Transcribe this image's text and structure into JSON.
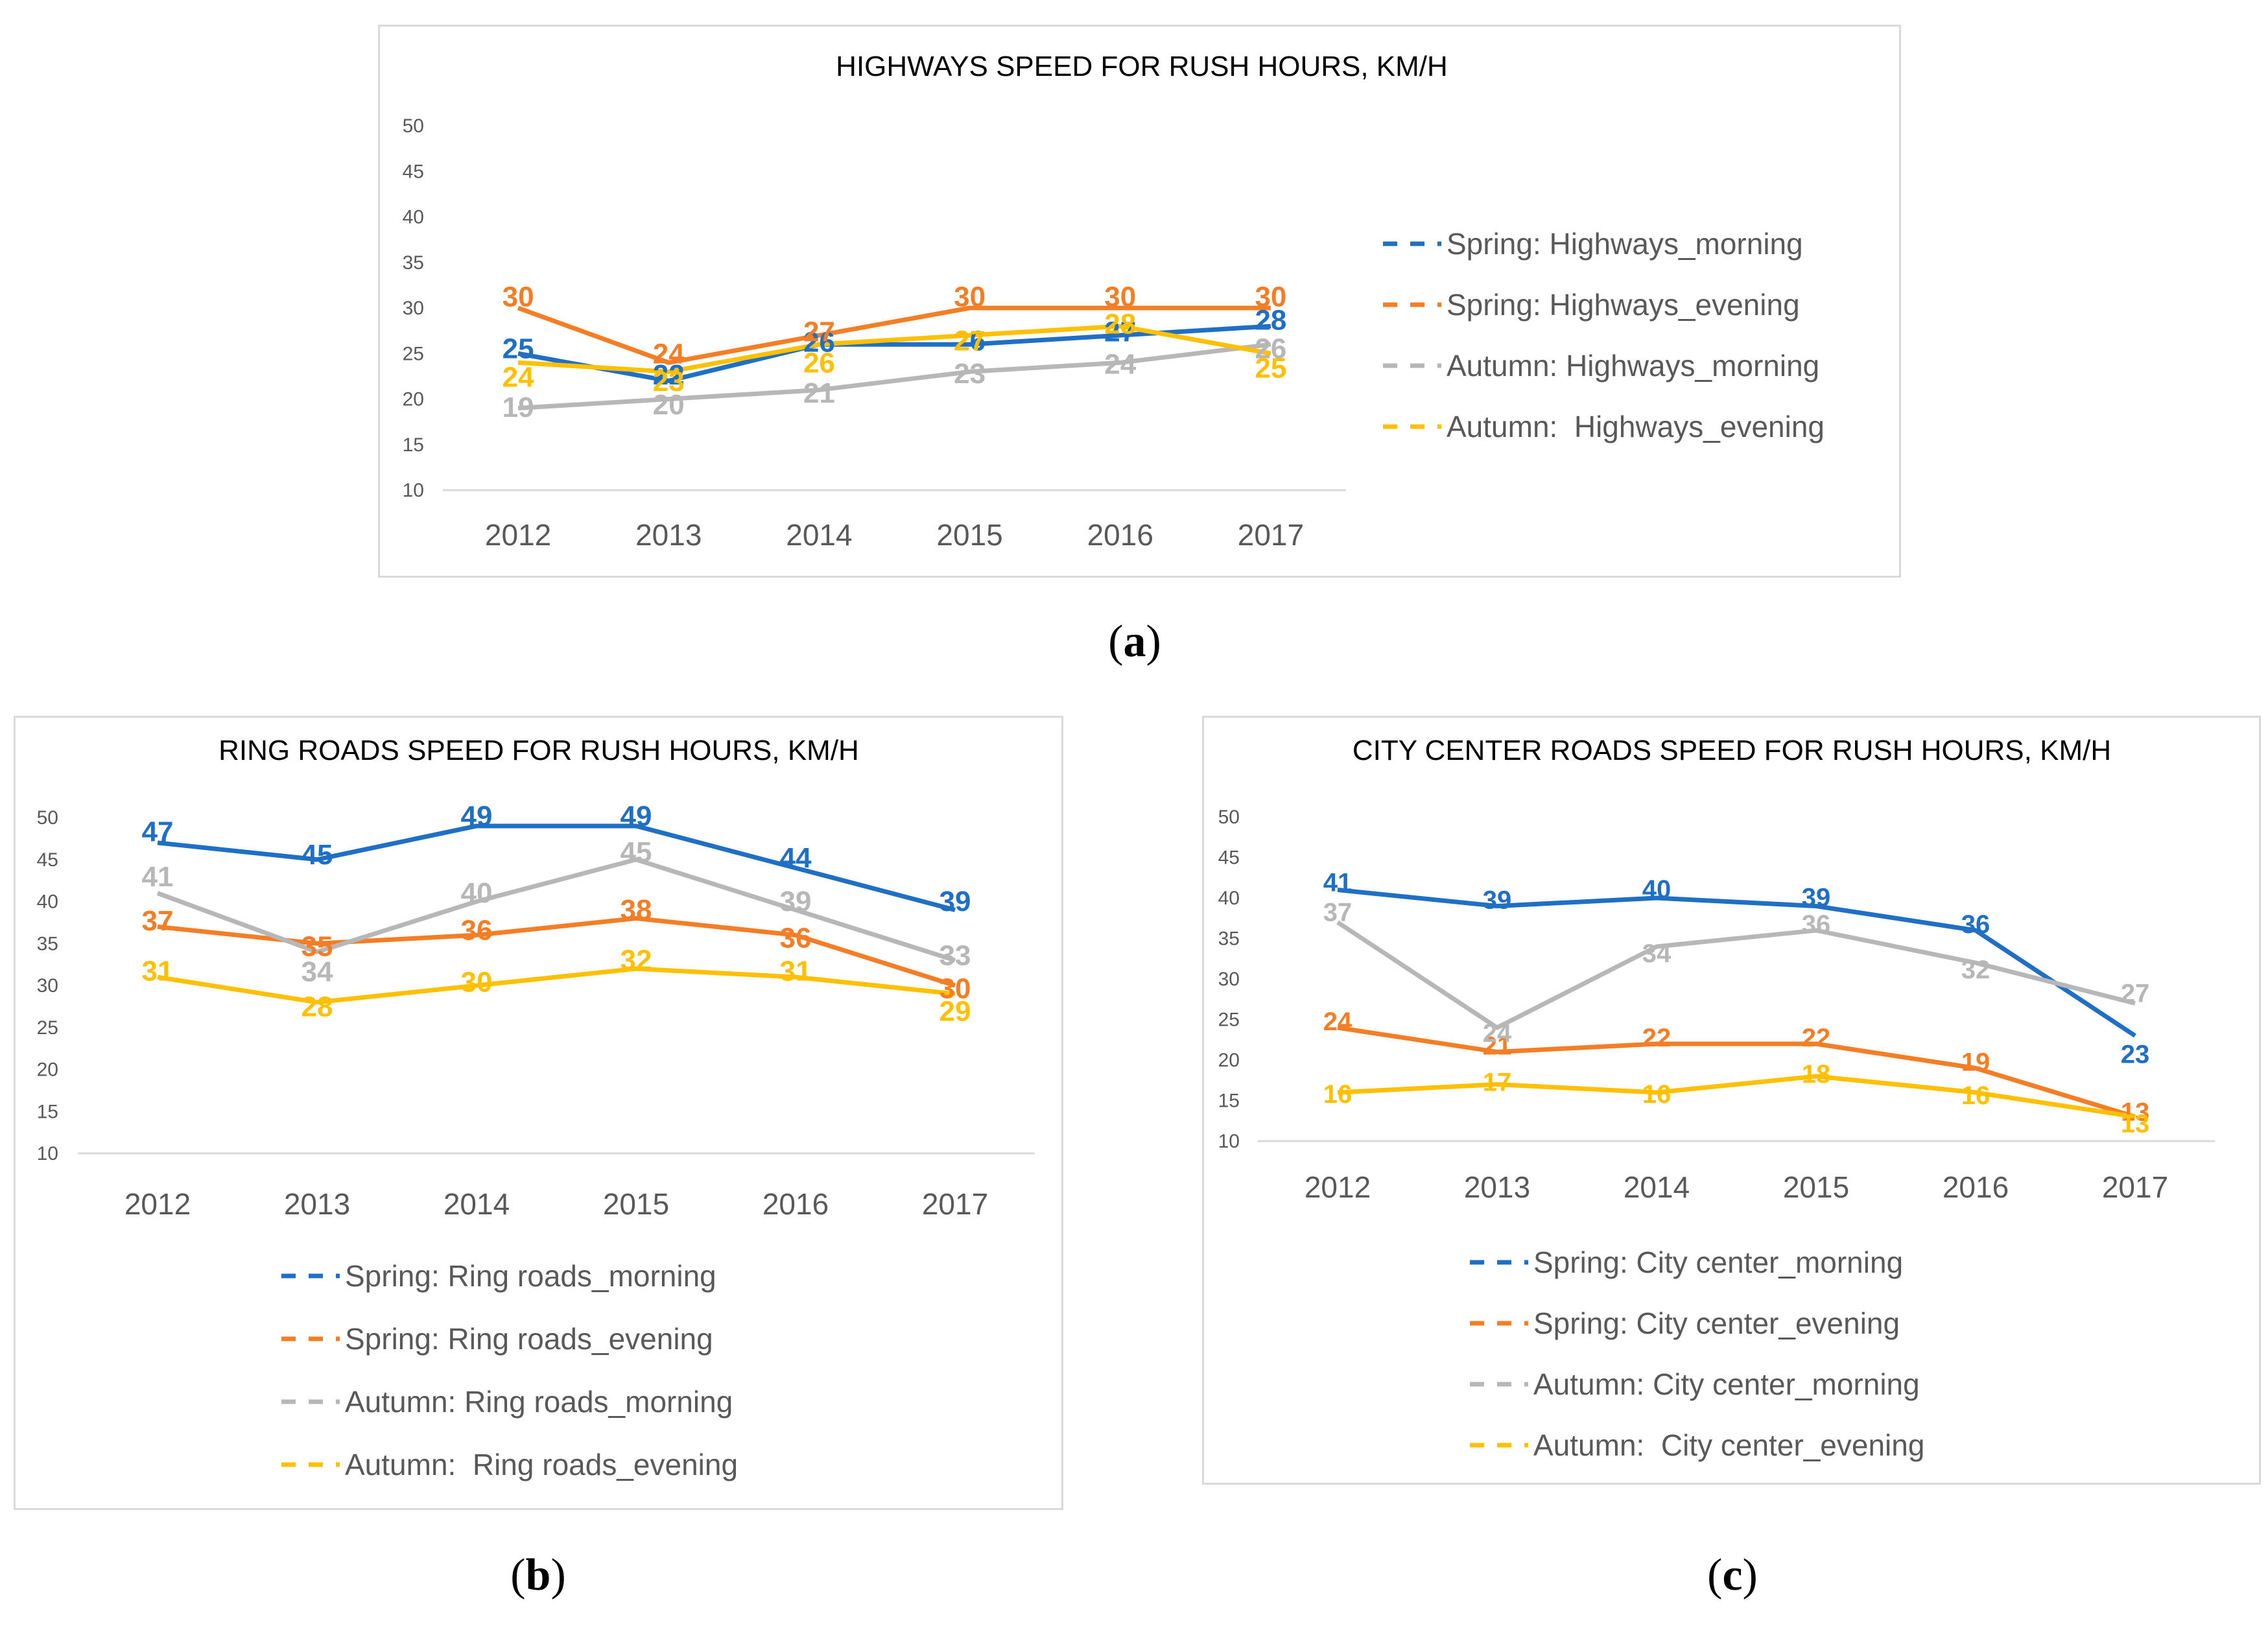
{
  "captions": {
    "a": "a",
    "b": "b",
    "c": "c"
  },
  "chart_data": [
    {
      "id": "a",
      "type": "line",
      "title": "HIGHWAYS SPEED FOR RUSH HOURS, KM/H",
      "xlabel": "",
      "ylabel": "",
      "ylim": [
        10,
        50
      ],
      "yticks": [
        "10",
        "15",
        "20",
        "25",
        "30",
        "35",
        "40",
        "45",
        "50"
      ],
      "categories": [
        "2012",
        "2013",
        "2014",
        "2015",
        "2016",
        "2017"
      ],
      "legend_position": "right",
      "series": [
        {
          "name": "Spring: Highways_morning",
          "color": "#1f6fc4",
          "values": [
            25,
            22,
            26,
            26,
            27,
            28
          ],
          "labels": [
            "25",
            "22",
            "26",
            "26",
            "27",
            "28"
          ]
        },
        {
          "name": "Spring: Highways_evening",
          "color": "#f37e25",
          "values": [
            30,
            24,
            27,
            30,
            30,
            30
          ],
          "labels": [
            "30",
            "24",
            "27",
            "30",
            "30",
            "30"
          ]
        },
        {
          "name": "Autumn: Highways_morning",
          "color": "#b7b7b7",
          "values": [
            19,
            20,
            21,
            23,
            24,
            26
          ],
          "labels": [
            "19",
            "20",
            "21",
            "23",
            "24",
            "26"
          ]
        },
        {
          "name": "Autumn:  Highways_evening",
          "color": "#ffc000",
          "values": [
            24,
            23,
            26,
            27,
            28,
            25
          ],
          "labels": [
            "24",
            "23",
            "26",
            "27",
            "28",
            "25"
          ]
        }
      ]
    },
    {
      "id": "b",
      "type": "line",
      "title": "RING ROADS SPEED FOR RUSH HOURS, KM/H",
      "xlabel": "",
      "ylabel": "",
      "ylim": [
        10,
        50
      ],
      "yticks": [
        "10",
        "15",
        "20",
        "25",
        "30",
        "35",
        "40",
        "45",
        "50"
      ],
      "categories": [
        "2012",
        "2013",
        "2014",
        "2015",
        "2016",
        "2017"
      ],
      "legend_position": "bottom",
      "series": [
        {
          "name": "Spring: Ring roads_morning",
          "color": "#1f6fc4",
          "values": [
            47,
            45,
            49,
            49,
            44,
            39
          ],
          "labels": [
            "47",
            "45",
            "49",
            "49",
            "44",
            "39"
          ]
        },
        {
          "name": "Spring: Ring roads_evening",
          "color": "#f37e25",
          "values": [
            37,
            35,
            36,
            38,
            36,
            30
          ],
          "labels": [
            "37",
            "35",
            "36",
            "38",
            "36",
            "30"
          ]
        },
        {
          "name": "Autumn: Ring roads_morning",
          "color": "#b7b7b7",
          "values": [
            41,
            34,
            40,
            45,
            39,
            33
          ],
          "labels": [
            "41",
            "34",
            "40",
            "45",
            "39",
            "33"
          ]
        },
        {
          "name": "Autumn:  Ring roads_evening",
          "color": "#ffc000",
          "values": [
            31,
            28,
            30,
            32,
            31,
            29
          ],
          "labels": [
            "31",
            "28",
            "30",
            "32",
            "31",
            "29"
          ]
        }
      ]
    },
    {
      "id": "c",
      "type": "line",
      "title": "CITY CENTER ROADS SPEED FOR RUSH HOURS, KM/H",
      "xlabel": "",
      "ylabel": "",
      "ylim": [
        10,
        50
      ],
      "yticks": [
        "10",
        "15",
        "20",
        "25",
        "30",
        "35",
        "40",
        "45",
        "50"
      ],
      "categories": [
        "2012",
        "2013",
        "2014",
        "2015",
        "2016",
        "2017"
      ],
      "legend_position": "bottom",
      "series": [
        {
          "name": "Spring: City center_morning",
          "color": "#1f6fc4",
          "values": [
            41,
            39,
            40,
            39,
            36,
            23
          ],
          "labels": [
            "41",
            "39",
            "40",
            "39",
            "36",
            "23"
          ]
        },
        {
          "name": "Spring: City center_evening",
          "color": "#f37e25",
          "values": [
            24,
            21,
            22,
            22,
            19,
            13
          ],
          "labels": [
            "24",
            "21",
            "22",
            "22",
            "19",
            "13"
          ]
        },
        {
          "name": "Autumn: City center_morning",
          "color": "#b7b7b7",
          "values": [
            37,
            24,
            34,
            36,
            32,
            27
          ],
          "labels": [
            "37",
            "24",
            "34",
            "36",
            "32",
            "27"
          ]
        },
        {
          "name": "Autumn:  City center_evening",
          "color": "#ffc000",
          "values": [
            16,
            17,
            16,
            18,
            16,
            13
          ],
          "labels": [
            "16",
            "17",
            "16",
            "18",
            "16",
            "13"
          ]
        }
      ]
    }
  ]
}
